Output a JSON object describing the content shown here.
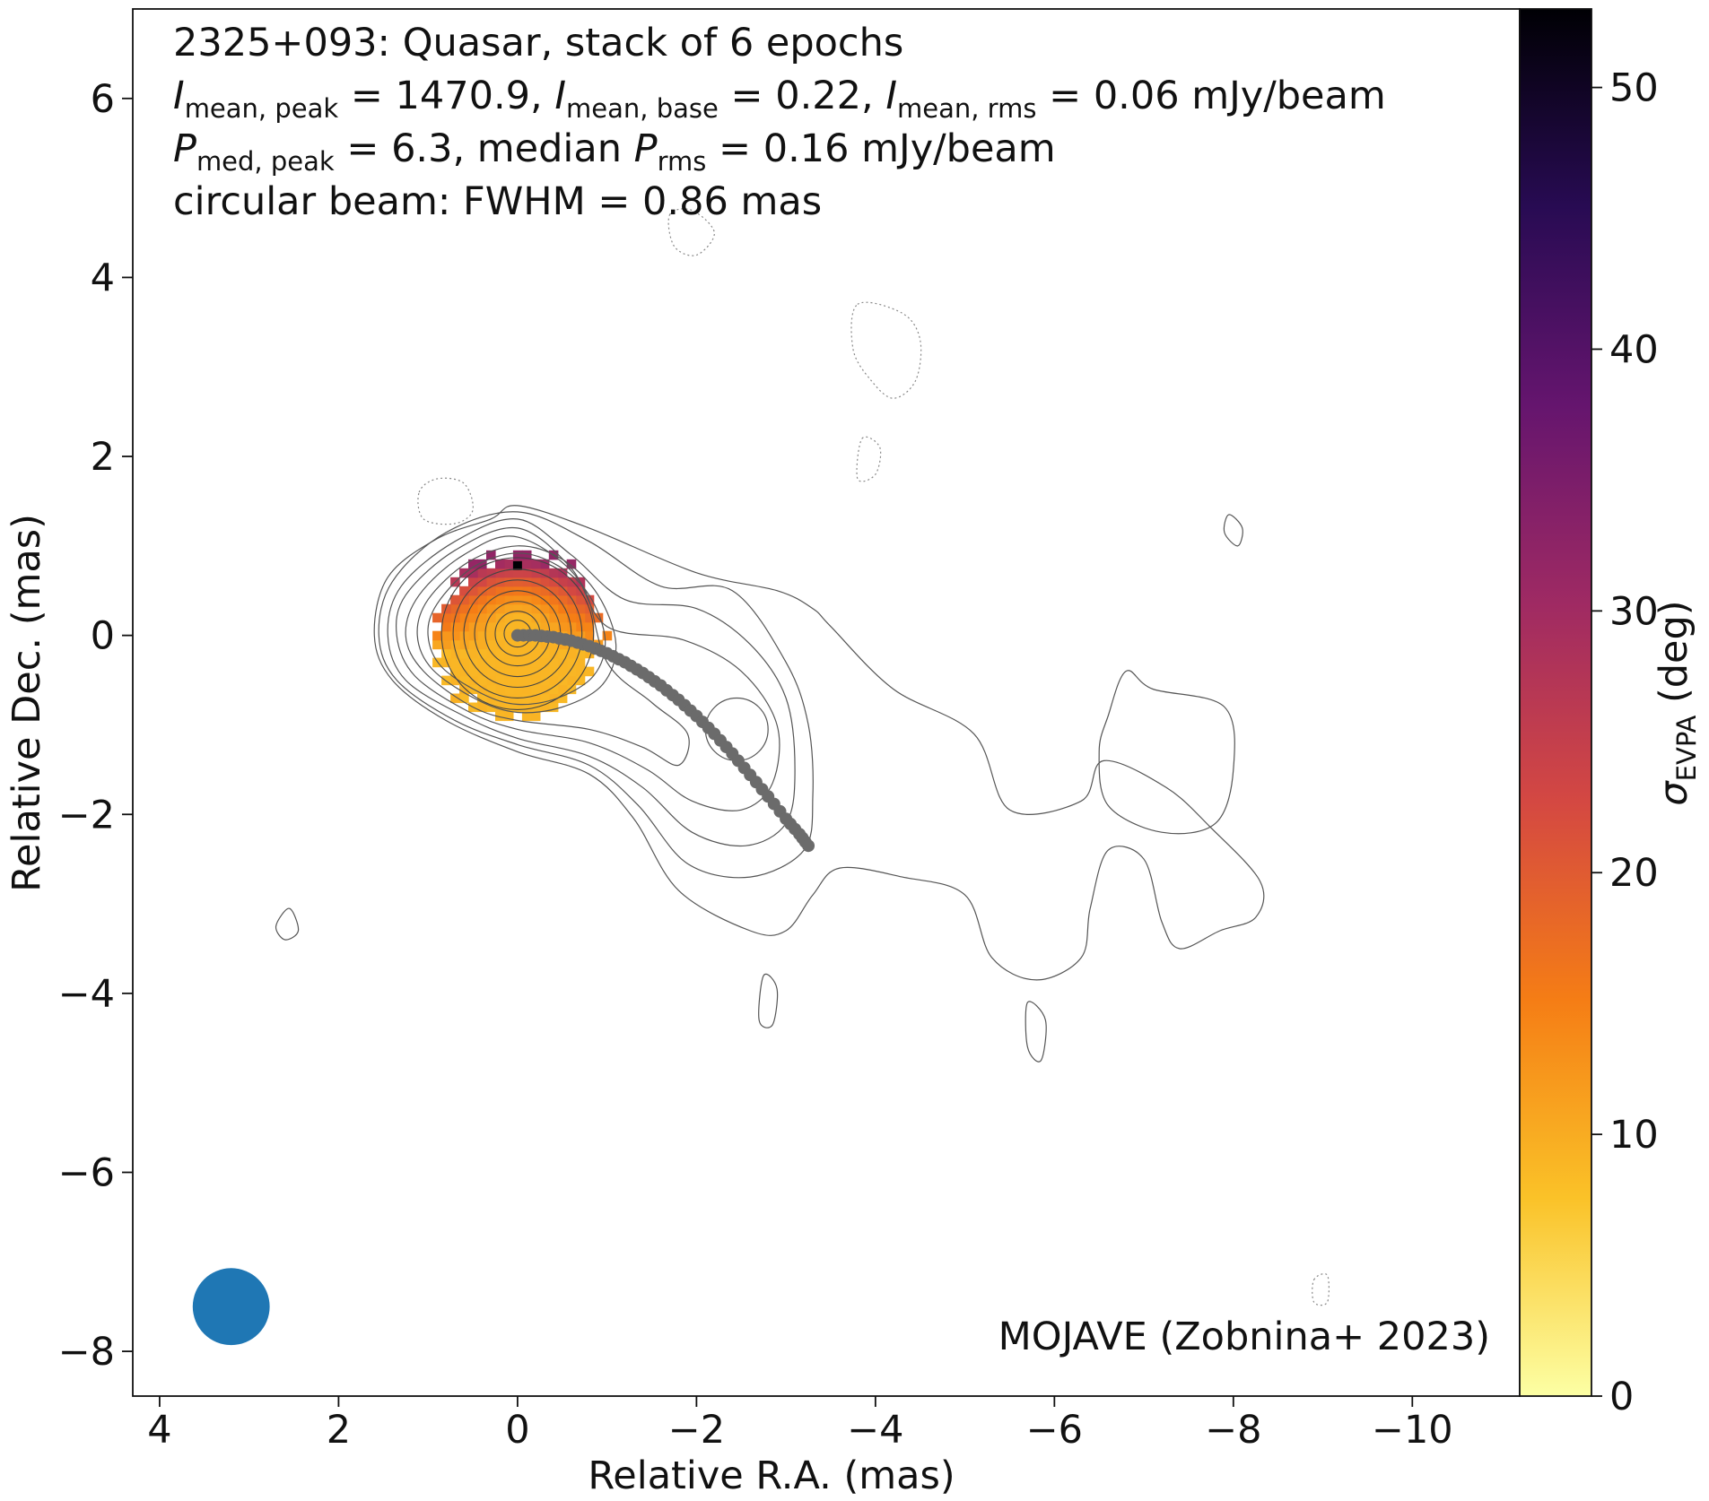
{
  "chart_data": {
    "type": "heatmap",
    "title_lines": [
      "2325+093: Quasar, stack of 6 epochs",
      [
        {
          "t": "I",
          "it": true
        },
        {
          "t": "mean, peak",
          "sub": true
        },
        {
          "t": " = 1470.9, "
        },
        {
          "t": "I",
          "it": true
        },
        {
          "t": "mean, base",
          "sub": true
        },
        {
          "t": " = 0.22, "
        },
        {
          "t": "I",
          "it": true
        },
        {
          "t": "mean, rms",
          "sub": true
        },
        {
          "t": " = 0.06 mJy/beam"
        }
      ],
      [
        {
          "t": "P",
          "it": true
        },
        {
          "t": "med, peak",
          "sub": true
        },
        {
          "t": " = 6.3, median "
        },
        {
          "t": "P",
          "it": true
        },
        {
          "t": "rms",
          "sub": true
        },
        {
          "t": " = 0.16 mJy/beam"
        }
      ],
      "circular beam: FWHM = 0.86 mas"
    ],
    "credit": "MOJAVE (Zobnina+ 2023)",
    "xlabel": "Relative R.A. (mas)",
    "ylabel": "Relative Dec. (mas)",
    "xlim": [
      4.3,
      -11.2
    ],
    "ylim": [
      -8.5,
      7.0
    ],
    "x_ticks": [
      4,
      2,
      0,
      -2,
      -4,
      -6,
      -8,
      -10
    ],
    "x_tick_labels": [
      "4",
      "2",
      "0",
      "−2",
      "−4",
      "−6",
      "−8",
      "−10"
    ],
    "y_ticks": [
      -8,
      -6,
      -4,
      -2,
      0,
      2,
      4,
      6
    ],
    "y_tick_labels": [
      "−8",
      "−6",
      "−4",
      "−2",
      "0",
      "2",
      "4",
      "6"
    ],
    "colorbar": {
      "label_main": "σ",
      "label_sub": "EVPA",
      "label_unit": " (deg)",
      "cmap": "inferno_r",
      "range": [
        0,
        53
      ],
      "ticks": [
        0,
        10,
        20,
        30,
        40,
        50
      ],
      "tick_labels": [
        "0",
        "10",
        "20",
        "30",
        "40",
        "50"
      ],
      "stops": [
        "#fcffa4",
        "#fac228",
        "#f57d15",
        "#d44842",
        "#9f2a63",
        "#65156e",
        "#280b53",
        "#000004"
      ]
    },
    "beam": {
      "x": 3.2,
      "y": -7.5,
      "fwhm_mas": 0.86,
      "color": "#1f77b4"
    },
    "ridge_color": "#6b6b6b",
    "ridge_line": {
      "x": [
        0.0,
        -0.2,
        -0.4,
        -0.6,
        -0.8,
        -1.0,
        -1.2,
        -1.4,
        -1.6,
        -1.8,
        -2.0,
        -2.2,
        -2.4,
        -2.6,
        -2.8,
        -3.0,
        -3.15,
        -3.25
      ],
      "y": [
        0.0,
        0.0,
        -0.02,
        -0.06,
        -0.12,
        -0.2,
        -0.3,
        -0.42,
        -0.56,
        -0.72,
        -0.9,
        -1.1,
        -1.32,
        -1.56,
        -1.8,
        -2.05,
        -2.22,
        -2.35
      ]
    },
    "evpa_pixels": {
      "pixel_mas": 0.1,
      "core_x": 0.0,
      "core_y": 0.0,
      "radius_mas": 1.0,
      "min_deg": 9,
      "max_deg": 32,
      "peak_x": 0.0,
      "peak_y": 0.78,
      "peak_deg": 53
    },
    "contours": [
      {
        "level": "negative",
        "style": "dotted",
        "points": [
          [
            1.1,
            1.6
          ],
          [
            0.9,
            1.75
          ],
          [
            0.6,
            1.7
          ],
          [
            0.5,
            1.4
          ],
          [
            0.7,
            1.25
          ],
          [
            1.05,
            1.3
          ]
        ]
      },
      {
        "level": "negative",
        "style": "dotted",
        "points": [
          [
            -1.7,
            4.7
          ],
          [
            -1.95,
            4.75
          ],
          [
            -2.2,
            4.5
          ],
          [
            -2.0,
            4.25
          ],
          [
            -1.75,
            4.35
          ]
        ]
      },
      {
        "level": "negative",
        "style": "dotted",
        "points": [
          [
            -3.8,
            3.7
          ],
          [
            -4.3,
            3.6
          ],
          [
            -4.5,
            3.3
          ],
          [
            -4.45,
            2.85
          ],
          [
            -4.2,
            2.65
          ],
          [
            -3.95,
            2.85
          ],
          [
            -3.75,
            3.2
          ]
        ]
      },
      {
        "level": "negative",
        "style": "dotted",
        "points": [
          [
            -3.85,
            2.2
          ],
          [
            -4.05,
            2.1
          ],
          [
            -4.0,
            1.8
          ],
          [
            -3.8,
            1.75
          ]
        ]
      },
      {
        "level": "negative",
        "style": "dotted",
        "points": [
          [
            -8.9,
            -7.2
          ],
          [
            -9.05,
            -7.15
          ],
          [
            -9.05,
            -7.45
          ],
          [
            -8.9,
            -7.45
          ]
        ]
      },
      {
        "level": "base",
        "style": "solid",
        "points": [
          [
            2.55,
            -3.05
          ],
          [
            2.45,
            -3.3
          ],
          [
            2.6,
            -3.4
          ],
          [
            2.7,
            -3.25
          ]
        ]
      },
      {
        "level": "base",
        "style": "solid",
        "points": [
          [
            -2.75,
            -3.8
          ],
          [
            -2.9,
            -3.95
          ],
          [
            -2.85,
            -4.35
          ],
          [
            -2.7,
            -4.3
          ]
        ]
      },
      {
        "level": "base",
        "style": "solid",
        "points": [
          [
            -5.7,
            -4.1
          ],
          [
            -5.9,
            -4.3
          ],
          [
            -5.85,
            -4.75
          ],
          [
            -5.7,
            -4.6
          ]
        ]
      },
      {
        "level": "base",
        "style": "solid",
        "points": [
          [
            -7.95,
            1.35
          ],
          [
            -8.1,
            1.2
          ],
          [
            -8.05,
            1.0
          ],
          [
            -7.9,
            1.15
          ]
        ]
      },
      {
        "level": "base",
        "style": "solid",
        "points": [
          [
            0.3,
            1.3
          ],
          [
            0.9,
            1.08
          ],
          [
            1.45,
            0.65
          ],
          [
            1.6,
            0.0
          ],
          [
            1.4,
            -0.5
          ],
          [
            0.8,
            -0.95
          ],
          [
            0.0,
            -1.3
          ],
          [
            -0.8,
            -1.55
          ],
          [
            -1.3,
            -2.05
          ],
          [
            -1.8,
            -2.85
          ],
          [
            -2.6,
            -3.3
          ],
          [
            -3.0,
            -3.3
          ],
          [
            -3.3,
            -2.9
          ],
          [
            -3.6,
            -2.6
          ],
          [
            -4.3,
            -2.7
          ],
          [
            -5.0,
            -2.9
          ],
          [
            -5.3,
            -3.6
          ],
          [
            -5.8,
            -3.85
          ],
          [
            -6.3,
            -3.6
          ],
          [
            -6.4,
            -3.05
          ],
          [
            -6.6,
            -2.4
          ],
          [
            -7.0,
            -2.5
          ],
          [
            -7.2,
            -3.2
          ],
          [
            -7.4,
            -3.5
          ],
          [
            -7.85,
            -3.3
          ],
          [
            -8.25,
            -3.15
          ],
          [
            -8.3,
            -2.75
          ],
          [
            -7.75,
            -2.15
          ],
          [
            -7.25,
            -1.7
          ],
          [
            -6.55,
            -1.4
          ],
          [
            -6.3,
            -1.85
          ],
          [
            -5.5,
            -1.95
          ],
          [
            -5.1,
            -1.1
          ],
          [
            -4.2,
            -0.6
          ],
          [
            -3.5,
            0.1
          ],
          [
            -3.3,
            0.3
          ],
          [
            -2.9,
            0.5
          ],
          [
            -2.0,
            0.7
          ],
          [
            -0.8,
            1.2
          ],
          [
            0.0,
            1.45
          ]
        ]
      },
      {
        "level": "base",
        "style": "solid",
        "points": [
          [
            -6.8,
            -0.4
          ],
          [
            -7.1,
            -0.6
          ],
          [
            -7.9,
            -0.8
          ],
          [
            -8.0,
            -1.5
          ],
          [
            -7.8,
            -2.1
          ],
          [
            -7.2,
            -2.2
          ],
          [
            -6.6,
            -1.9
          ],
          [
            -6.5,
            -1.3
          ],
          [
            -6.6,
            -0.9
          ]
        ]
      },
      {
        "level": "2",
        "style": "solid",
        "points": [
          [
            0.0,
            1.38
          ],
          [
            0.8,
            1.15
          ],
          [
            1.4,
            0.6
          ],
          [
            1.55,
            0.0
          ],
          [
            1.35,
            -0.5
          ],
          [
            0.7,
            -0.95
          ],
          [
            0.0,
            -1.22
          ],
          [
            -0.8,
            -1.45
          ],
          [
            -1.35,
            -1.9
          ],
          [
            -1.9,
            -2.55
          ],
          [
            -2.6,
            -2.7
          ],
          [
            -3.2,
            -2.4
          ],
          [
            -3.3,
            -1.8
          ],
          [
            -3.25,
            -1.0
          ],
          [
            -3.0,
            -0.3
          ],
          [
            -2.4,
            0.5
          ],
          [
            -1.6,
            0.55
          ],
          [
            -0.8,
            1.05
          ]
        ]
      },
      {
        "level": "3",
        "style": "solid",
        "points": [
          [
            0.0,
            1.3
          ],
          [
            0.7,
            1.05
          ],
          [
            1.3,
            0.55
          ],
          [
            1.45,
            0.0
          ],
          [
            1.25,
            -0.5
          ],
          [
            0.6,
            -0.9
          ],
          [
            0.0,
            -1.15
          ],
          [
            -0.8,
            -1.35
          ],
          [
            -1.4,
            -1.7
          ],
          [
            -1.95,
            -2.2
          ],
          [
            -2.55,
            -2.35
          ],
          [
            -3.0,
            -2.1
          ],
          [
            -3.1,
            -1.5
          ],
          [
            -3.0,
            -0.7
          ],
          [
            -2.6,
            -0.1
          ],
          [
            -2.0,
            0.3
          ],
          [
            -1.2,
            0.4
          ],
          [
            -0.6,
            0.9
          ]
        ]
      },
      {
        "level": "4",
        "style": "solid",
        "points": [
          [
            0.0,
            1.2
          ],
          [
            0.7,
            0.95
          ],
          [
            1.25,
            0.45
          ],
          [
            1.35,
            0.0
          ],
          [
            1.15,
            -0.45
          ],
          [
            0.55,
            -0.85
          ],
          [
            0.0,
            -1.05
          ],
          [
            -0.8,
            -1.2
          ],
          [
            -1.45,
            -1.5
          ],
          [
            -1.95,
            -1.85
          ],
          [
            -2.5,
            -1.95
          ],
          [
            -2.85,
            -1.65
          ],
          [
            -2.9,
            -1.0
          ],
          [
            -2.5,
            -0.4
          ],
          [
            -1.85,
            -0.05
          ],
          [
            -1.0,
            0.1
          ],
          [
            -0.6,
            0.75
          ]
        ]
      },
      {
        "level": "5",
        "style": "solid",
        "points": [
          [
            0.0,
            1.1
          ],
          [
            0.6,
            0.9
          ],
          [
            1.1,
            0.45
          ],
          [
            1.25,
            0.0
          ],
          [
            1.05,
            -0.4
          ],
          [
            0.5,
            -0.8
          ],
          [
            0.0,
            -0.95
          ],
          [
            -0.8,
            -1.05
          ],
          [
            -1.4,
            -1.25
          ],
          [
            -1.8,
            -1.45
          ],
          [
            -1.9,
            -1.1
          ],
          [
            -1.5,
            -0.75
          ],
          [
            -1.0,
            -0.3
          ],
          [
            -0.7,
            0.6
          ]
        ]
      },
      {
        "level": "6",
        "style": "solid",
        "points": [
          [
            0.0,
            1.0
          ],
          [
            0.55,
            0.82
          ],
          [
            1.0,
            0.4
          ],
          [
            1.12,
            0.0
          ],
          [
            0.95,
            -0.38
          ],
          [
            0.45,
            -0.72
          ],
          [
            0.0,
            -0.86
          ],
          [
            -0.5,
            -0.8
          ],
          [
            -0.95,
            -0.55
          ],
          [
            -1.1,
            -0.1
          ],
          [
            -0.9,
            0.45
          ],
          [
            -0.5,
            0.85
          ]
        ]
      },
      {
        "level": "7",
        "style": "solid",
        "points": [
          [
            0.0,
            0.92
          ],
          [
            0.5,
            0.76
          ],
          [
            0.9,
            0.35
          ],
          [
            1.0,
            0.0
          ],
          [
            0.85,
            -0.35
          ],
          [
            0.4,
            -0.65
          ],
          [
            0.0,
            -0.77
          ],
          [
            -0.45,
            -0.7
          ],
          [
            -0.85,
            -0.45
          ],
          [
            -0.98,
            -0.05
          ],
          [
            -0.8,
            0.45
          ],
          [
            -0.45,
            0.78
          ]
        ]
      },
      {
        "level": "circle",
        "style": "solid",
        "circle": {
          "x": -2.45,
          "y": -1.05,
          "r": 0.35
        }
      }
    ],
    "core_ring_radii_mas": [
      0.85,
      0.72,
      0.6,
      0.48,
      0.36,
      0.25,
      0.15
    ]
  }
}
